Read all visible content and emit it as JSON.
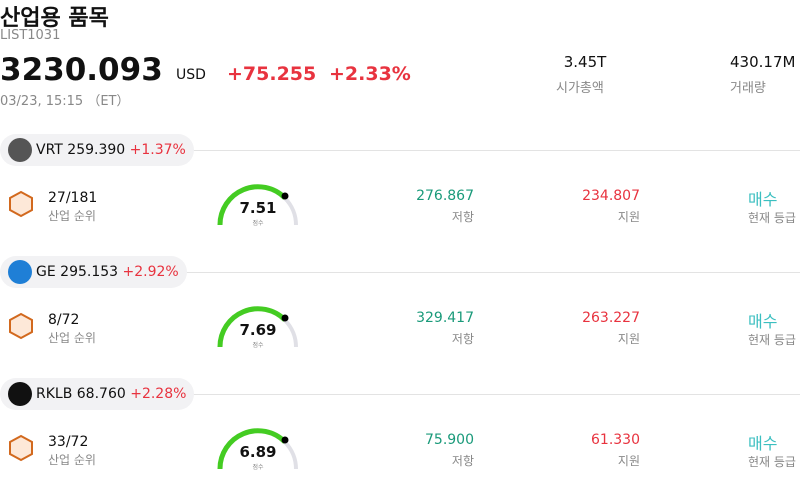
{
  "header": {
    "title": "산업용 품목",
    "code": "LIST1031",
    "price": "3230.093",
    "currency": "USD",
    "change": "+75.255",
    "change_pct": "+2.33%",
    "time": "03/23, 15:15 （ET）"
  },
  "stats": [
    {
      "value": "3.45T",
      "label": "시가총액"
    },
    {
      "value": "430.17M",
      "label": "거래량"
    }
  ],
  "stocks": [
    {
      "ticker": "VRT",
      "price": "259.390",
      "change_pct": "+1.37%",
      "rank": "27/181",
      "rank_label": "산업 순위",
      "score": "7.51",
      "score_label": "점수",
      "resistance": "276.867",
      "resistance_label": "저항",
      "support": "234.807",
      "support_label": "지원",
      "rating": "매수",
      "rating_label": "현재 등급"
    },
    {
      "ticker": "GE",
      "price": "295.153",
      "change_pct": "+2.92%",
      "rank": "8/72",
      "rank_label": "산업 순위",
      "score": "7.69",
      "score_label": "점수",
      "resistance": "329.417",
      "resistance_label": "저항",
      "support": "263.227",
      "support_label": "지원",
      "rating": "매수",
      "rating_label": "현재 등급"
    },
    {
      "ticker": "RKLB",
      "price": "68.760",
      "change_pct": "+2.28%",
      "rank": "33/72",
      "rank_label": "산업 순위",
      "score": "6.89",
      "score_label": "점수",
      "resistance": "75.900",
      "resistance_label": "저항",
      "support": "61.330",
      "support_label": "지원",
      "rating": "매수",
      "rating_label": "현재 등급"
    }
  ]
}
